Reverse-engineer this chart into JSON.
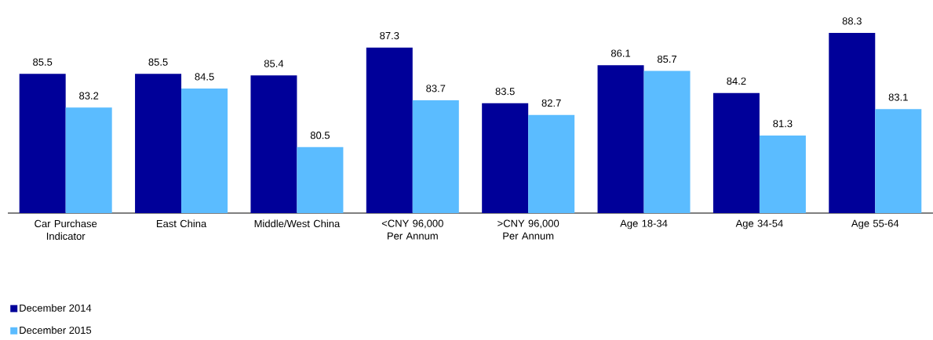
{
  "chart_data": {
    "type": "bar",
    "categories": [
      "Car Purchase Indicator",
      "East China",
      "Middle/West China",
      "<CNY 96,000 Per Annum",
      ">CNY 96,000 Per Annum",
      "Age 18-34",
      "Age 34-54",
      "Age 55-64"
    ],
    "series": [
      {
        "name": "December 2014",
        "color": "#000099",
        "values": [
          85.5,
          85.5,
          85.4,
          87.3,
          83.5,
          86.1,
          84.2,
          88.3
        ]
      },
      {
        "name": "December 2015",
        "color": "#5bbcff",
        "values": [
          83.2,
          84.5,
          80.5,
          83.7,
          82.7,
          85.7,
          81.3,
          83.1
        ]
      }
    ],
    "ylim": [
      76,
      88.3
    ],
    "data_labels": true,
    "legend": "bottom left"
  }
}
